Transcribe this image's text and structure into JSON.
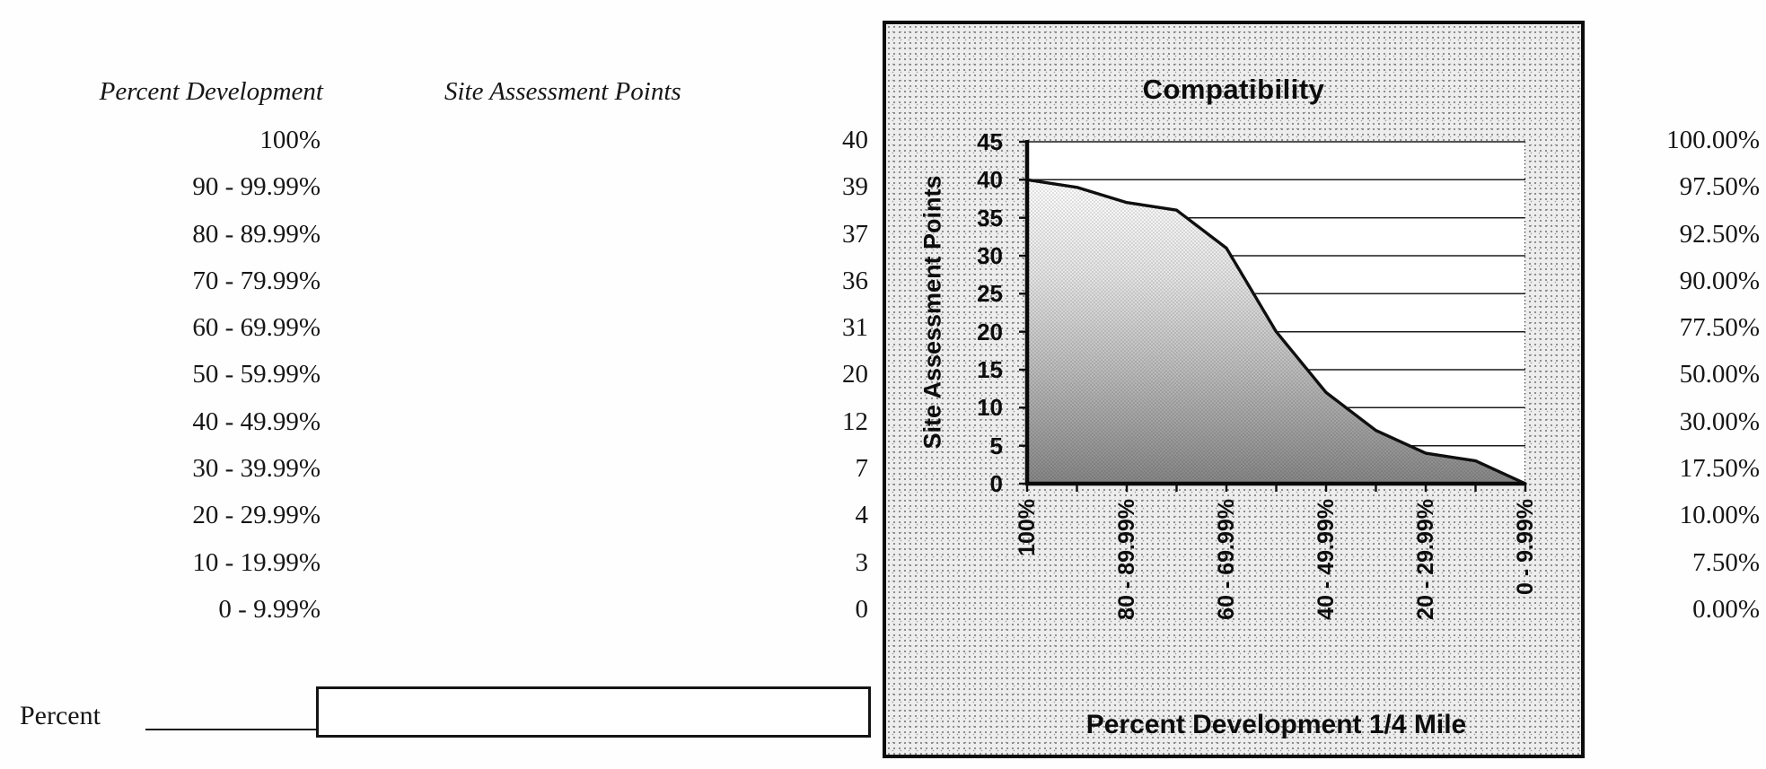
{
  "table": {
    "headers": {
      "percent_development": "Percent Development",
      "site_assessment_points": "Site Assessment Points"
    },
    "rows": [
      {
        "range": "100%",
        "points": "40",
        "cumulative": "100.00%"
      },
      {
        "range": "90 - 99.99%",
        "points": "39",
        "cumulative": "97.50%"
      },
      {
        "range": "80 - 89.99%",
        "points": "37",
        "cumulative": "92.50%"
      },
      {
        "range": "70 - 79.99%",
        "points": "36",
        "cumulative": "90.00%"
      },
      {
        "range": "60 - 69.99%",
        "points": "31",
        "cumulative": "77.50%"
      },
      {
        "range": "50 - 59.99%",
        "points": "20",
        "cumulative": "50.00%"
      },
      {
        "range": "40 - 49.99%",
        "points": "12",
        "cumulative": "30.00%"
      },
      {
        "range": "30 - 39.99%",
        "points": "7",
        "cumulative": "17.50%"
      },
      {
        "range": "20 - 29.99%",
        "points": "4",
        "cumulative": "10.00%"
      },
      {
        "range": "10 - 19.99%",
        "points": "3",
        "cumulative": "7.50%"
      },
      {
        "range": "0 - 9.99%",
        "points": "0",
        "cumulative": "0.00%"
      }
    ]
  },
  "percent_input": {
    "label": "Percent",
    "value": "",
    "placeholder": ""
  },
  "chart_data": {
    "type": "area",
    "title": "Compatibility",
    "xlabel": "Percent Development 1/4 Mile",
    "ylabel": "Site Assessment Points",
    "categories": [
      "100%",
      "90 - 99.99%",
      "80 - 89.99%",
      "70 - 79.99%",
      "60 - 69.99%",
      "50 - 59.99%",
      "40 - 49.99%",
      "30 - 39.99%",
      "20 - 29.99%",
      "10 - 19.99%",
      "0 - 9.99%"
    ],
    "values": [
      40,
      39,
      37,
      36,
      31,
      20,
      12,
      7,
      4,
      3,
      0
    ],
    "ylim": [
      0,
      45
    ],
    "ytick_step": 5,
    "x_labels_shown_every": 2,
    "grid": "horizontal",
    "legend": "none",
    "fill_style": "halftone-gradient",
    "colors": {
      "line": "#0f0f0f",
      "fill_top": "#ffffff",
      "fill_mid": "#bcbcbc",
      "fill_bottom": "#858585",
      "chart_background": "#ededed",
      "plot_background": "#ffffff"
    }
  }
}
